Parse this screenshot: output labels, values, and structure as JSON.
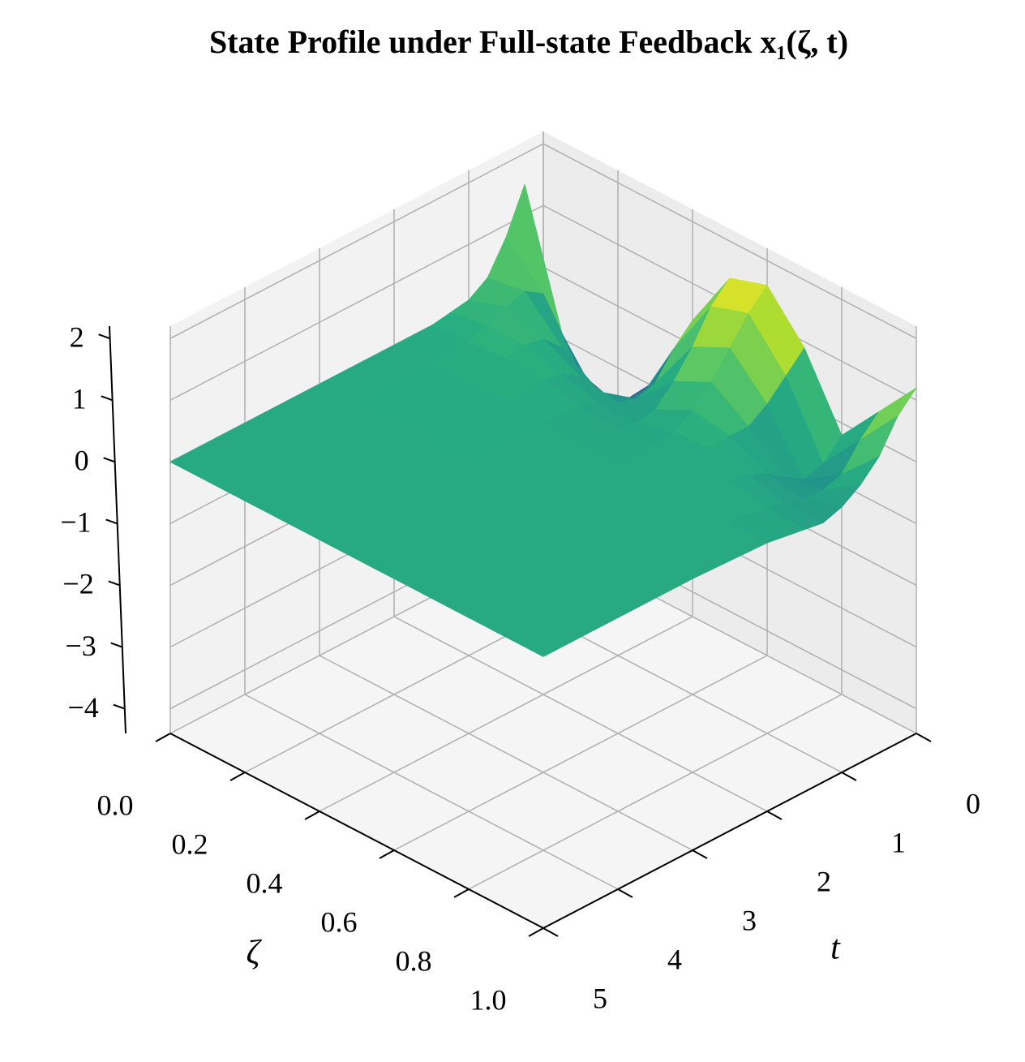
{
  "chart_data": {
    "type": "surface",
    "title": "State Profile under Full-state Feedback x₁(ζ, t)",
    "xlabel": "ζ",
    "ylabel": "t",
    "x": [
      0,
      0.1,
      0.2,
      0.3,
      0.4,
      0.5,
      0.6,
      0.7,
      0.8,
      0.9,
      1
    ],
    "y": [
      0,
      0.25,
      0.5,
      0.75,
      1,
      1.25,
      1.5,
      2,
      3,
      4,
      5
    ],
    "z": [
      [
        -0.8,
        -1.4,
        -1.6,
        -0.9,
        0.4,
        1.4,
        1.6,
        0.9,
        -0.2,
        0.5,
        1.2
      ],
      [
        1.5,
        -0.6,
        -1.4,
        -1.1,
        0.1,
        1.1,
        1.3,
        0.6,
        -0.5,
        0.2,
        0.9
      ],
      [
        0.8,
        0.2,
        -0.8,
        -1.0,
        -0.3,
        0.6,
        0.9,
        0.3,
        -0.6,
        -0.2,
        0.4
      ],
      [
        0.3,
        0.4,
        -0.2,
        -0.6,
        -0.4,
        0.2,
        0.5,
        0.1,
        -0.4,
        -0.3,
        0.1
      ],
      [
        0.1,
        0.3,
        0.1,
        -0.2,
        -0.3,
        -0.1,
        0.2,
        0.1,
        -0.2,
        -0.3,
        -0.1
      ],
      [
        0.05,
        0.15,
        0.15,
        0,
        -0.15,
        -0.15,
        0,
        0.05,
        -0.05,
        -0.2,
        -0.2
      ],
      [
        0,
        0.05,
        0.1,
        0.05,
        -0.05,
        -0.1,
        -0.05,
        0,
        0,
        -0.1,
        -0.15
      ],
      [
        0,
        0,
        0.02,
        0.02,
        0,
        -0.02,
        -0.02,
        0,
        0,
        -0.03,
        -0.05
      ],
      [
        0,
        0,
        0,
        0,
        0,
        0,
        0,
        0,
        0,
        0,
        0
      ],
      [
        0,
        0,
        0,
        0,
        0,
        0,
        0,
        0,
        0,
        0,
        0
      ],
      [
        0,
        0,
        0,
        0,
        0,
        0,
        0,
        0,
        0,
        0,
        0
      ]
    ],
    "xlim": [
      0,
      1
    ],
    "ylim": [
      0,
      5
    ],
    "zlim": [
      -4.4,
      2.2
    ],
    "xticks": [
      {
        "value": 0,
        "label": "0.0"
      },
      0.2,
      0.4,
      0.6,
      0.8,
      {
        "value": 1,
        "label": "1.0"
      }
    ],
    "yticks": [
      0,
      1,
      2,
      3,
      4,
      5
    ],
    "zticks": [
      {
        "value": -4,
        "label": "−4"
      },
      {
        "value": -3,
        "label": "−3"
      },
      {
        "value": -2,
        "label": "−2"
      },
      {
        "value": -1,
        "label": "−1"
      },
      0,
      1,
      2
    ],
    "colormap": "viridis",
    "clim": [
      -2.5,
      1.6
    ],
    "grid": true
  }
}
